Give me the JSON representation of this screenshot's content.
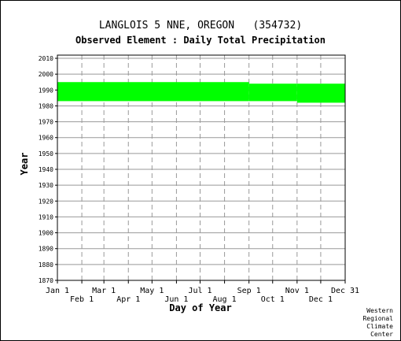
{
  "header": {
    "station": "LANGLOIS 5 NNE, OREGON   (354732)",
    "element": "Observed Element : Daily Total Precipitation"
  },
  "credit": [
    "Western",
    "Regional",
    "Climate",
    "Center"
  ],
  "colors": {
    "data": "#00ff00",
    "grid": "#999999",
    "axis": "#000000"
  },
  "chart_data": {
    "type": "area",
    "title": "LANGLOIS 5 NNE, OREGON   (354732)",
    "subtitle": "Observed Element : Daily Total Precipitation",
    "xlabel": "Day of Year",
    "ylabel": "Year",
    "xlim": [
      1,
      366
    ],
    "ylim": [
      1870,
      2012
    ],
    "x_ticks_top": [
      {
        "label": "Jan 1",
        "day": 1
      },
      {
        "label": "Mar 1",
        "day": 60
      },
      {
        "label": "May 1",
        "day": 121
      },
      {
        "label": "Jul 1",
        "day": 182
      },
      {
        "label": "Sep 1",
        "day": 244
      },
      {
        "label": "Nov 1",
        "day": 305
      },
      {
        "label": "Dec 31",
        "day": 366
      }
    ],
    "x_ticks_bottom": [
      {
        "label": "Feb 1",
        "day": 32
      },
      {
        "label": "Apr 1",
        "day": 91
      },
      {
        "label": "Jun 1",
        "day": 152
      },
      {
        "label": "Aug 1",
        "day": 213
      },
      {
        "label": "Oct 1",
        "day": 274
      },
      {
        "label": "Dec 1",
        "day": 335
      }
    ],
    "y_ticks": [
      1870,
      1880,
      1890,
      1900,
      1910,
      1920,
      1930,
      1940,
      1950,
      1960,
      1970,
      1980,
      1990,
      2000,
      2010
    ],
    "grid": true,
    "series": [
      {
        "values": [
          {
            "start_day": 1,
            "end_day": 243,
            "year_from": 1983,
            "year_to": 1994
          },
          {
            "start_day": 244,
            "end_day": 304,
            "year_from": 1983,
            "year_to": 1993
          },
          {
            "start_day": 305,
            "end_day": 366,
            "year_from": 1982,
            "year_to": 1993
          }
        ]
      }
    ]
  }
}
